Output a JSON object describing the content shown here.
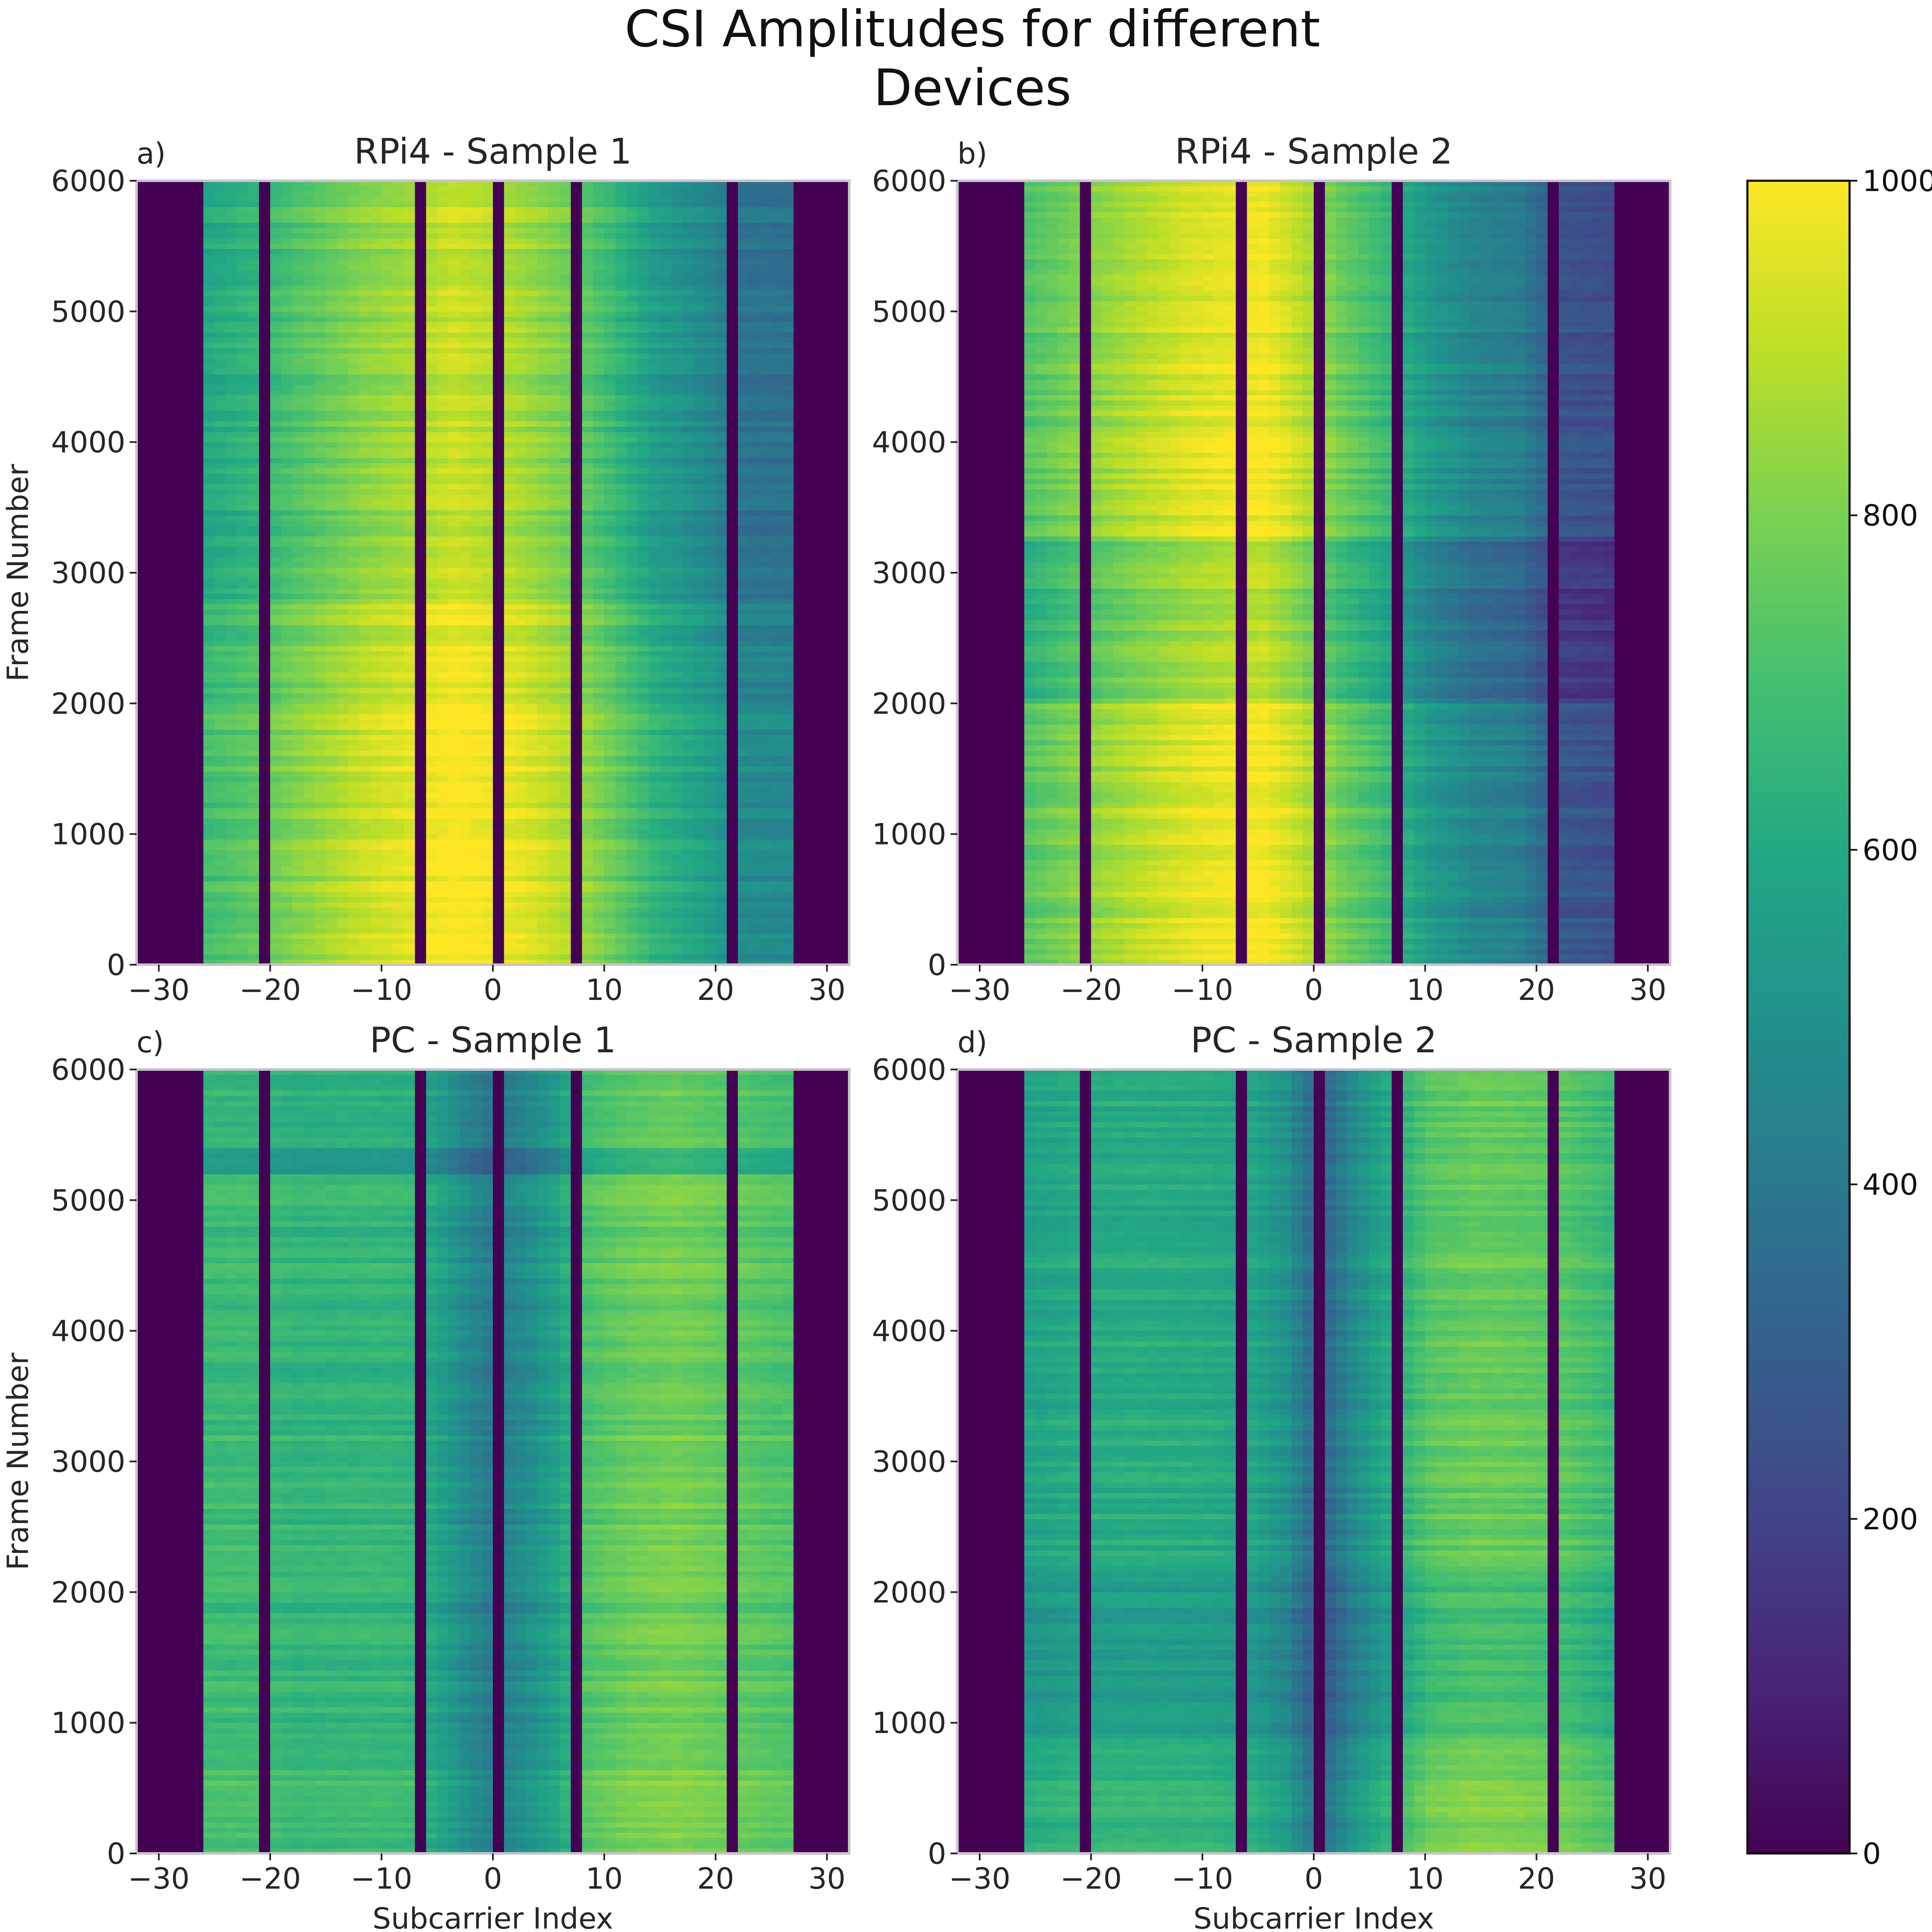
{
  "chart_data": {
    "type": "heatmap",
    "title_lines": [
      "CSI Amplitudes for different",
      "Devices"
    ],
    "colormap": "viridis",
    "colorbar": {
      "min": 0,
      "max": 1000,
      "ticks": [
        0,
        200,
        400,
        600,
        800,
        1000
      ]
    },
    "x_tick_values": [
      -30,
      -20,
      -10,
      0,
      10,
      20,
      30
    ],
    "x_tick_labels": [
      "−30",
      "−20",
      "−10",
      "0",
      "10",
      "20",
      "30"
    ],
    "y_tick_labels": [
      "0",
      "1000",
      "2000",
      "3000",
      "4000",
      "5000",
      "6000"
    ],
    "xlim": [
      -32,
      32
    ],
    "ylim": [
      0,
      6000
    ],
    "null_subcarriers": [
      -32,
      -31,
      -30,
      -29,
      -28,
      -27,
      -21,
      -7,
      0,
      7,
      21,
      27,
      28,
      29,
      30,
      31
    ],
    "panels": [
      {
        "letter": "a)",
        "title": "RPi4 - Sample 1",
        "xlabel": "",
        "ylabel": "Frame Number",
        "amplitude_profile": [
          [
            -26,
            640
          ],
          [
            -22,
            690
          ],
          [
            -18,
            760
          ],
          [
            -12,
            860
          ],
          [
            -8,
            900
          ],
          [
            -4,
            960
          ],
          [
            -1,
            930
          ],
          [
            2,
            900
          ],
          [
            6,
            830
          ],
          [
            10,
            720
          ],
          [
            14,
            590
          ],
          [
            18,
            520
          ],
          [
            22,
            420
          ],
          [
            26,
            410
          ]
        ],
        "frame_segments": [
          {
            "frame_range": [
              0,
              2000
            ],
            "offset": 60
          },
          {
            "frame_range": [
              2000,
              2800
            ],
            "offset": 20
          },
          {
            "frame_range": [
              2800,
              6000
            ],
            "offset": -40
          }
        ]
      },
      {
        "letter": "b)",
        "title": "RPi4 - Sample 2",
        "xlabel": "",
        "ylabel": "",
        "amplitude_profile": [
          [
            -26,
            720
          ],
          [
            -22,
            790
          ],
          [
            -16,
            880
          ],
          [
            -12,
            930
          ],
          [
            -8,
            960
          ],
          [
            -5,
            980
          ],
          [
            -2,
            900
          ],
          [
            2,
            760
          ],
          [
            6,
            660
          ],
          [
            10,
            520
          ],
          [
            14,
            440
          ],
          [
            18,
            410
          ],
          [
            22,
            250
          ],
          [
            26,
            230
          ]
        ],
        "frame_segments": [
          {
            "frame_range": [
              0,
              2000
            ],
            "offset": 20
          },
          {
            "frame_range": [
              2000,
              3300
            ],
            "offset": -80
          },
          {
            "frame_range": [
              3300,
              6000
            ],
            "offset": 10
          }
        ]
      },
      {
        "letter": "c)",
        "title": "PC - Sample 1",
        "xlabel": "Subcarrier Index",
        "ylabel": "Frame Number",
        "amplitude_profile": [
          [
            -26,
            680
          ],
          [
            -22,
            680
          ],
          [
            -18,
            650
          ],
          [
            -12,
            660
          ],
          [
            -8,
            650
          ],
          [
            -5,
            560
          ],
          [
            -3,
            480
          ],
          [
            -1,
            420
          ],
          [
            2,
            470
          ],
          [
            5,
            560
          ],
          [
            8,
            720
          ],
          [
            12,
            770
          ],
          [
            16,
            790
          ],
          [
            20,
            760
          ],
          [
            24,
            730
          ],
          [
            26,
            720
          ]
        ],
        "frame_segments": [
          {
            "frame_range": [
              0,
              850
            ],
            "offset": 30
          },
          {
            "frame_range": [
              850,
              5200
            ],
            "offset": 0
          },
          {
            "frame_range": [
              5200,
              5400
            ],
            "offset": -120
          },
          {
            "frame_range": [
              5400,
              6000
            ],
            "offset": -20
          }
        ]
      },
      {
        "letter": "d)",
        "title": "PC - Sample 2",
        "xlabel": "Subcarrier Index",
        "ylabel": "",
        "amplitude_profile": [
          [
            -26,
            580
          ],
          [
            -22,
            610
          ],
          [
            -16,
            620
          ],
          [
            -10,
            610
          ],
          [
            -6,
            590
          ],
          [
            -3,
            510
          ],
          [
            -1,
            380
          ],
          [
            1,
            360
          ],
          [
            3,
            480
          ],
          [
            6,
            600
          ],
          [
            10,
            740
          ],
          [
            14,
            770
          ],
          [
            18,
            760
          ],
          [
            22,
            740
          ],
          [
            26,
            680
          ]
        ],
        "frame_segments": [
          {
            "frame_range": [
              0,
              900
            ],
            "offset": 40
          },
          {
            "frame_range": [
              900,
              2150
            ],
            "offset": -70
          },
          {
            "frame_range": [
              2150,
              6000
            ],
            "offset": 0
          }
        ]
      }
    ]
  }
}
